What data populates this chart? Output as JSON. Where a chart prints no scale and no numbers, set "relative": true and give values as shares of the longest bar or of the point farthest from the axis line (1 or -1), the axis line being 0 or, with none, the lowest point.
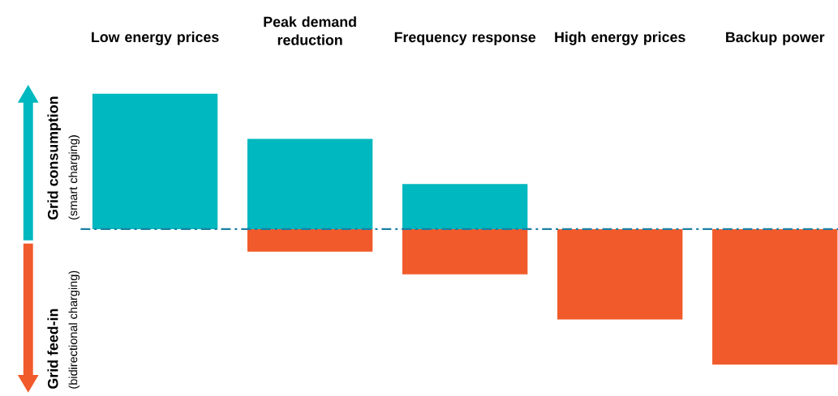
{
  "chart_data": {
    "type": "bar",
    "relative": true,
    "stacked": true,
    "categories": [
      "Low energy prices",
      "Peak demand reduction",
      "Frequency response",
      "High energy prices",
      "Backup power"
    ],
    "series": [
      {
        "color": "#00b8bf",
        "values": [
          1,
          0.667,
          0.333,
          null,
          null
        ]
      },
      {
        "color": "#f15a2b",
        "values": [
          null,
          -0.167,
          -0.333,
          -0.667,
          -1
        ]
      }
    ],
    "annotations": [
      "Grid consumption",
      "(smart charging)",
      "Grid feed-in",
      "(bidirectional charging)"
    ],
    "ref_lines": [
      {
        "axis": "y",
        "value": 0,
        "color": "#1b7fa3",
        "line_style": "dashdot"
      }
    ]
  }
}
